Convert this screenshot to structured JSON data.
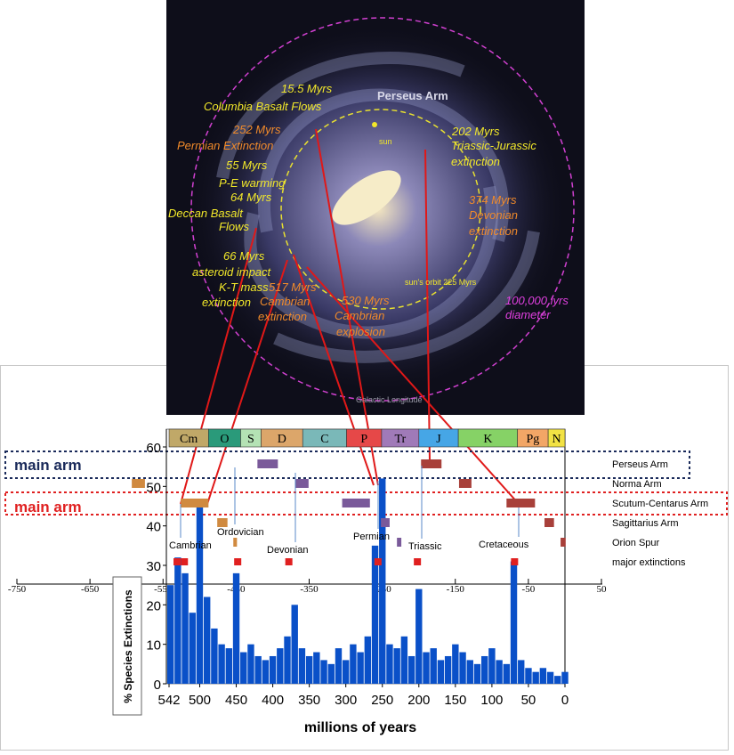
{
  "galaxy": {
    "labels": [
      {
        "text": "15.5 Myrs",
        "color": "#f2e82a"
      },
      {
        "text": "Columbia Basalt Flows",
        "color": "#f2e82a"
      },
      {
        "text": "252 Myrs",
        "color": "#f08a2a"
      },
      {
        "text": "Permian Extinction",
        "color": "#f08a2a"
      },
      {
        "text": "55 Myrs",
        "color": "#f2e82a"
      },
      {
        "text": "P-E warming",
        "color": "#f2e82a"
      },
      {
        "text": "64 Myrs",
        "color": "#f2e82a"
      },
      {
        "text": "Deccan Basalt",
        "color": "#f2e82a"
      },
      {
        "text": "Flows",
        "color": "#f2e82a"
      },
      {
        "text": "66 Myrs",
        "color": "#f2e82a"
      },
      {
        "text": "asteroid impact",
        "color": "#f2e82a"
      },
      {
        "text": "K-T mass",
        "color": "#f2e82a"
      },
      {
        "text": "extinction",
        "color": "#f2e82a"
      },
      {
        "text": "517 Myrs",
        "color": "#f08a2a"
      },
      {
        "text": "Cambrian",
        "color": "#f08a2a"
      },
      {
        "text": "extinction",
        "color": "#f08a2a"
      },
      {
        "text": "530 Myrs",
        "color": "#f08a2a"
      },
      {
        "text": "Cambrian",
        "color": "#f08a2a"
      },
      {
        "text": "explosion",
        "color": "#f08a2a"
      },
      {
        "text": "202 Myrs",
        "color": "#f2e82a"
      },
      {
        "text": "Triassic-Jurassic",
        "color": "#f2e82a"
      },
      {
        "text": "extinction",
        "color": "#f2e82a"
      },
      {
        "text": "374 Myrs",
        "color": "#f08a2a"
      },
      {
        "text": "Devonian",
        "color": "#f08a2a"
      },
      {
        "text": "extinction",
        "color": "#f08a2a"
      },
      {
        "text": "100,000 lyrs",
        "color": "#e040e0"
      },
      {
        "text": "diameter",
        "color": "#e040e0"
      },
      {
        "text": "sun",
        "color": "#f2e82a"
      },
      {
        "text": "Perseus Arm",
        "color": "#d8d8e8"
      },
      {
        "text": "sun's orbit 225 Myrs",
        "color": "#f2e82a"
      },
      {
        "text": "Galactic Longitude",
        "color": "#9a9aa8"
      }
    ]
  },
  "chart_data": [
    {
      "type": "bar",
      "x_label": "millions of years",
      "y_label": "% Species Extinctions",
      "color": "#0a50c8",
      "x": [
        540,
        530,
        520,
        510,
        500,
        490,
        480,
        470,
        460,
        450,
        440,
        430,
        420,
        410,
        400,
        390,
        380,
        370,
        360,
        350,
        340,
        330,
        320,
        310,
        300,
        290,
        280,
        270,
        260,
        250,
        240,
        230,
        220,
        210,
        200,
        190,
        180,
        170,
        160,
        150,
        140,
        130,
        120,
        110,
        100,
        90,
        80,
        70,
        60,
        50,
        40,
        30,
        20,
        10,
        0
      ],
      "values": [
        25,
        32,
        28,
        18,
        45,
        22,
        14,
        10,
        9,
        28,
        8,
        10,
        7,
        6,
        7,
        9,
        12,
        20,
        9,
        7,
        8,
        6,
        5,
        9,
        6,
        10,
        8,
        12,
        35,
        52,
        10,
        9,
        12,
        7,
        24,
        8,
        9,
        6,
        7,
        10,
        8,
        6,
        5,
        7,
        9,
        6,
        5,
        31,
        6,
        4,
        3,
        4,
        3,
        2,
        3
      ],
      "xlim": [
        542,
        0
      ],
      "xticks": [
        542,
        500,
        450,
        400,
        350,
        300,
        250,
        200,
        150,
        100,
        50,
        0
      ],
      "ylim": [
        0,
        60
      ],
      "yticks": [
        0,
        10,
        20,
        30,
        40,
        50,
        60
      ],
      "x2lim": [
        -750,
        50
      ],
      "x2ticks": [
        -750,
        -650,
        -550,
        -450,
        -350,
        -250,
        -150,
        -50,
        50
      ],
      "periods": {
        "names": [
          "Cm",
          "O",
          "S",
          "D",
          "C",
          "P",
          "Tr",
          "J",
          "K",
          "Pg",
          "N"
        ],
        "bounds": [
          542,
          488,
          444,
          416,
          359,
          299,
          251,
          200,
          146,
          65,
          23,
          0
        ],
        "colors": [
          "#c0a868",
          "#2a9a7a",
          "#b4e2b4",
          "#dca66a",
          "#7ab8b8",
          "#e64848",
          "#a07ab8",
          "#46a6e6",
          "#86d266",
          "#f2a666",
          "#f2e244"
        ]
      }
    },
    {
      "type": "range",
      "series": [
        {
          "name": "Perseus Arm",
          "values": [
            [
              421,
              393
            ],
            [
              197,
              169
            ]
          ],
          "colors": [
            "#7a5a9a",
            "#a8403a"
          ]
        },
        {
          "name": "Norma Arm",
          "values": [
            [
              593,
              575
            ],
            [
              369,
              351
            ],
            [
              145,
              128
            ]
          ],
          "colors": [
            "#d08a40",
            "#7a5a9a",
            "#a8403a"
          ]
        },
        {
          "name": "Scutum-Centarus Arm",
          "values": [
            [
              526,
              488
            ],
            [
              305,
              267
            ],
            [
              80,
              41
            ]
          ],
          "colors": [
            "#d08a40",
            "#7a5a9a",
            "#a8403a"
          ]
        },
        {
          "name": "Sagittarius Arm",
          "values": [
            [
              476,
              462
            ],
            [
              252,
              240
            ],
            [
              28,
              15
            ]
          ],
          "colors": [
            "#d08a40",
            "#7a5a9a",
            "#a8403a"
          ]
        },
        {
          "name": "Orion Spur",
          "values": [
            [
              454,
              449
            ],
            [
              230,
              224
            ],
            [
              6,
              -1
            ]
          ],
          "colors": [
            "#d08a40",
            "#7a5a9a",
            "#a8403a"
          ]
        }
      ],
      "markers": {
        "name": "major extinctions",
        "values": [
          531,
          521,
          448,
          378,
          256,
          202,
          69
        ],
        "color": "#e02020"
      },
      "annotations": [
        "Cambrian",
        "Ordovician",
        "Devonian",
        "Permian",
        "Triassic",
        "Cretaceous"
      ],
      "arm_labels": [
        {
          "text": "main arm",
          "color": "#1a2a5a"
        },
        {
          "text": "main arm",
          "color": "#e02020"
        }
      ]
    }
  ]
}
